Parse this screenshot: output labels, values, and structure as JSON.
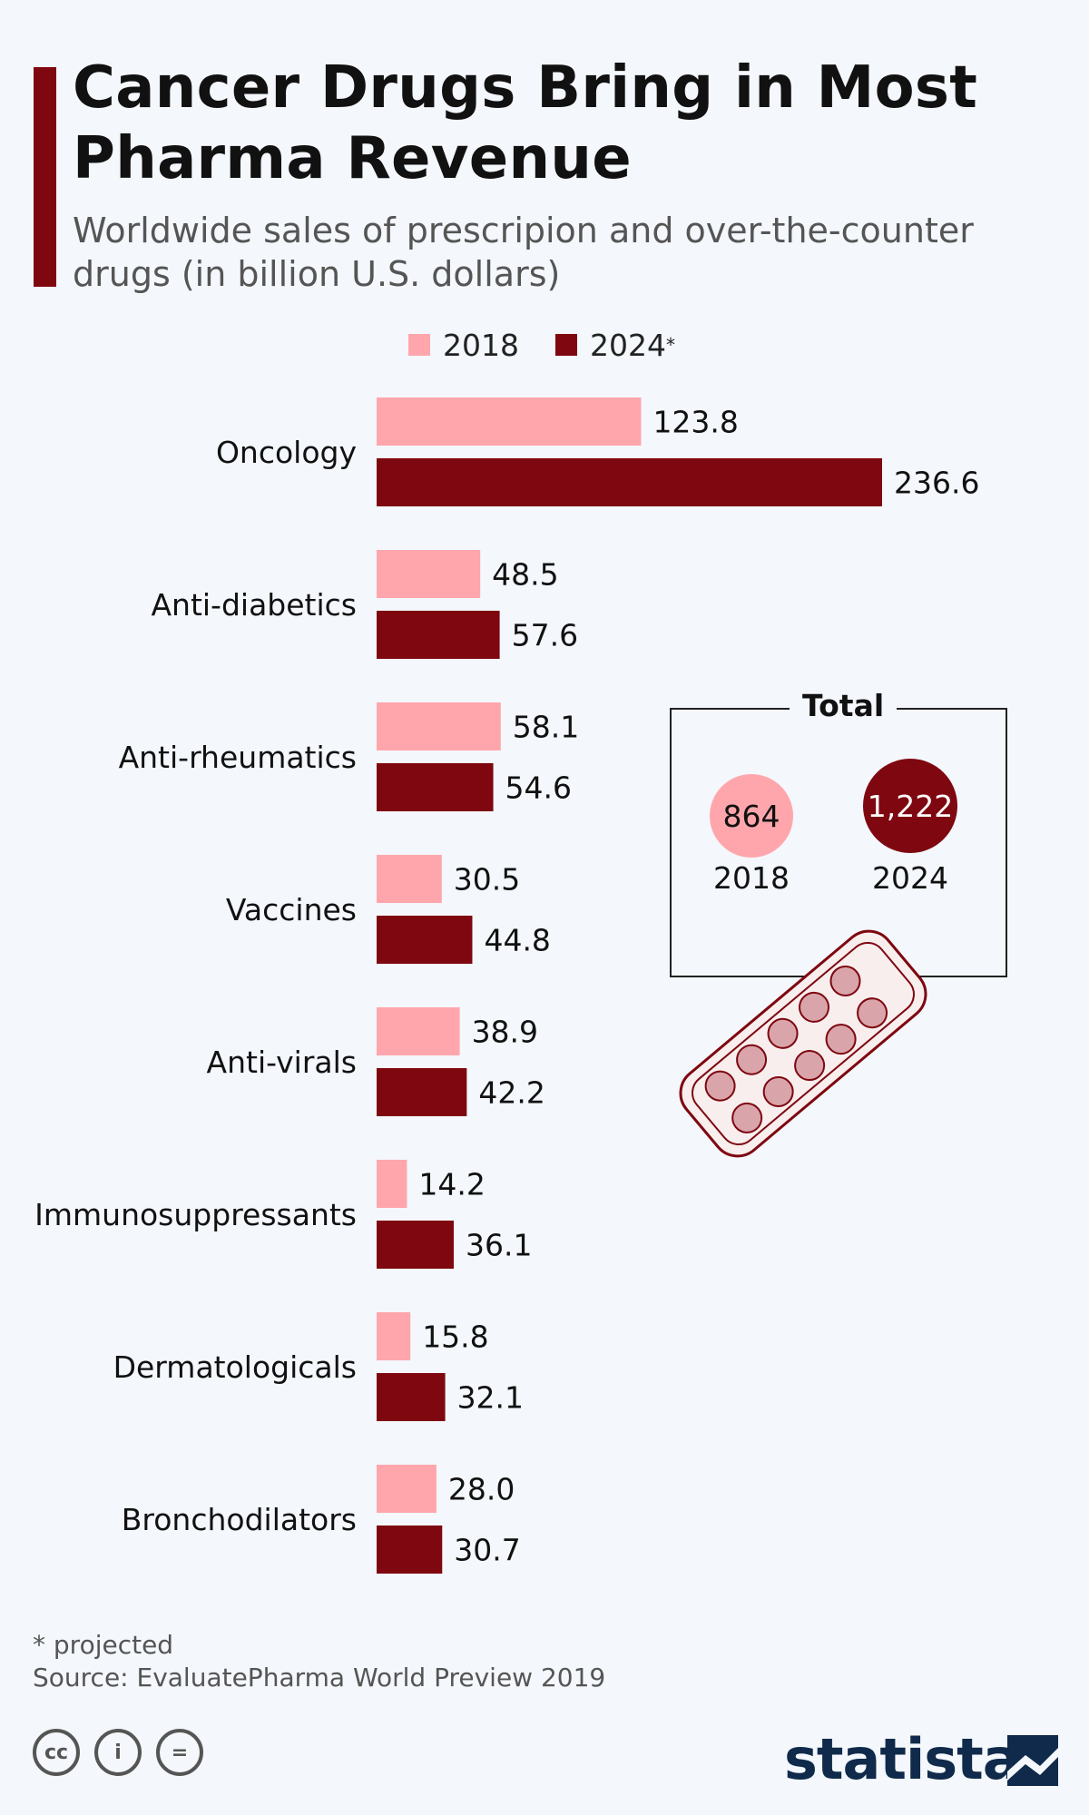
{
  "header": {
    "title": "Cancer Drugs Bring in Most Pharma Revenue",
    "subtitle": "Worldwide sales of prescripion and over-the-counter drugs (in billion U.S. dollars)"
  },
  "legend": {
    "items": [
      {
        "label": "2018",
        "color": "#ffa6ad"
      },
      {
        "label": "2024",
        "sup": "*",
        "color": "#7e0710"
      }
    ]
  },
  "chart_data": {
    "type": "bar",
    "orientation": "horizontal",
    "title": "Cancer Drugs Bring in Most Pharma Revenue",
    "categories": [
      "Oncology",
      "Anti-diabetics",
      "Anti-rheumatics",
      "Vaccines",
      "Anti-virals",
      "Immunosuppressants",
      "Dermatologicals",
      "Bronchodilators"
    ],
    "series": [
      {
        "name": "2018",
        "color": "#ffa6ad",
        "values": [
          123.8,
          48.5,
          58.1,
          30.5,
          38.9,
          14.2,
          15.8,
          28.0
        ],
        "labels": [
          "123.8",
          "48.5",
          "58.1",
          "30.5",
          "38.9",
          "14.2",
          "15.8",
          "28.0"
        ]
      },
      {
        "name": "2024*",
        "color": "#7e0710",
        "values": [
          236.6,
          57.6,
          54.6,
          44.8,
          42.2,
          36.1,
          32.1,
          30.7
        ],
        "labels": [
          "236.6",
          "57.6",
          "54.6",
          "44.8",
          "42.2",
          "36.1",
          "32.1",
          "30.7"
        ]
      }
    ],
    "xlim": [
      0,
      240
    ],
    "xlabel": "",
    "ylabel": "",
    "grid": false,
    "legend": "top"
  },
  "totals": {
    "label": "Total",
    "items": [
      {
        "year": "2018",
        "value": "864",
        "color": "#ffa6ad"
      },
      {
        "year": "2024",
        "value": "1,222",
        "color": "#7e0710"
      }
    ]
  },
  "footer": {
    "note": "* projected",
    "source": "Source: EvaluatePharma World Preview 2019",
    "brand": "statista"
  }
}
